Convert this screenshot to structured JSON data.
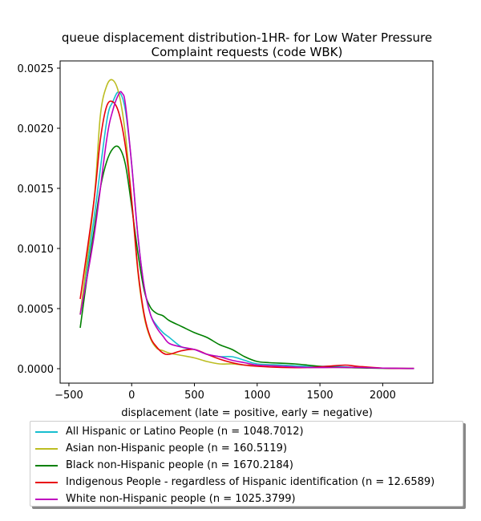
{
  "chart_data": {
    "type": "line",
    "title": "queue displacement distribution-1HR-  for Low Water Pressure\nComplaint  requests (code WBK)",
    "xlabel": "displacement (late = positive, early = negative)",
    "ylabel": "",
    "xlim": [
      -570,
      2400
    ],
    "ylim": [
      -0.00012,
      0.00256
    ],
    "xticks": [
      -500,
      0,
      500,
      1000,
      1500,
      2000
    ],
    "xtick_labels": [
      "−500",
      "0",
      "500",
      "1000",
      "1500",
      "2000"
    ],
    "yticks": [
      0.0,
      0.0005,
      0.001,
      0.0015,
      0.002,
      0.0025
    ],
    "ytick_labels": [
      "0.0000",
      "0.0005",
      "0.0010",
      "0.0015",
      "0.0020",
      "0.0025"
    ],
    "grid": false,
    "legend_placement": "below",
    "series": [
      {
        "name": "All Hispanic or Latino People (n = 1048.7012)",
        "color": "#17becf",
        "x": [
          -410,
          -300,
          -200,
          -150,
          -100,
          -50,
          0,
          50,
          100,
          150,
          200,
          250,
          300,
          400,
          500,
          600,
          700,
          800,
          900,
          1000,
          1200,
          1400,
          1600,
          1800,
          2000,
          2250
        ],
        "y": [
          0.00045,
          0.00125,
          0.00205,
          0.00222,
          0.0023,
          0.00215,
          0.0017,
          0.0011,
          0.00068,
          0.00045,
          0.00036,
          0.0003,
          0.00026,
          0.00018,
          0.00016,
          0.00012,
          0.0001,
          0.0001,
          7e-05,
          4e-05,
          3e-05,
          2e-05,
          2e-05,
          1e-05,
          5e-06,
          2e-06
        ]
      },
      {
        "name": "Asian non-Hispanic people (n = 160.5119)",
        "color": "#bcbd22",
        "x": [
          -410,
          -300,
          -250,
          -200,
          -150,
          -100,
          -50,
          0,
          50,
          100,
          150,
          200,
          250,
          300,
          400,
          500,
          600,
          700,
          800,
          900,
          1000,
          1200,
          1400,
          1600,
          1800,
          2000,
          2250
        ],
        "y": [
          0.00045,
          0.0014,
          0.0021,
          0.00235,
          0.0024,
          0.00228,
          0.00195,
          0.0014,
          0.0008,
          0.00043,
          0.00025,
          0.00017,
          0.00015,
          0.00013,
          0.00011,
          9e-05,
          6e-05,
          4e-05,
          4e-05,
          3e-05,
          3e-05,
          2e-05,
          1e-05,
          1e-05,
          1e-05,
          5e-06,
          2e-06
        ]
      },
      {
        "name": "Black non-Hispanic people (n = 1670.2184)",
        "color": "#008000",
        "x": [
          -410,
          -350,
          -300,
          -250,
          -200,
          -150,
          -100,
          -50,
          0,
          50,
          100,
          150,
          200,
          250,
          300,
          400,
          500,
          600,
          700,
          800,
          900,
          1000,
          1100,
          1300,
          1500,
          1700,
          1900,
          2100,
          2250
        ],
        "y": [
          0.00034,
          0.0008,
          0.00115,
          0.0015,
          0.00172,
          0.00183,
          0.00184,
          0.0017,
          0.00135,
          0.00096,
          0.00065,
          0.00051,
          0.00046,
          0.00044,
          0.0004,
          0.00035,
          0.0003,
          0.00026,
          0.0002,
          0.00016,
          0.0001,
          6e-05,
          5e-05,
          4e-05,
          2e-05,
          1e-05,
          5e-06,
          2e-06,
          1e-06
        ]
      },
      {
        "name": "Indigenous People - regardless of Hispanic identification (n = 12.6589)",
        "color": "#e8000b",
        "x": [
          -410,
          -300,
          -250,
          -200,
          -150,
          -100,
          -50,
          0,
          50,
          100,
          150,
          200,
          250,
          300,
          400,
          500,
          600,
          700,
          800,
          900,
          1000,
          1200,
          1400,
          1550,
          1700,
          1800,
          2000,
          2250
        ],
        "y": [
          0.00058,
          0.0014,
          0.0019,
          0.00218,
          0.00222,
          0.00212,
          0.00185,
          0.0014,
          0.00082,
          0.00045,
          0.00026,
          0.00018,
          0.00013,
          0.00012,
          0.00015,
          0.00016,
          0.00012,
          8e-05,
          5e-05,
          3e-05,
          2e-05,
          1e-05,
          1e-05,
          2e-05,
          3e-05,
          2e-05,
          5e-06,
          2e-06
        ]
      },
      {
        "name": "White non-Hispanic people (n = 1025.3799)",
        "color": "#bf00bf",
        "x": [
          -410,
          -300,
          -200,
          -150,
          -100,
          -75,
          -50,
          0,
          50,
          100,
          150,
          200,
          250,
          300,
          400,
          500,
          600,
          700,
          800,
          900,
          1000,
          1200,
          1400,
          1600,
          1800,
          2000,
          2250
        ],
        "y": [
          0.00045,
          0.0011,
          0.0019,
          0.00215,
          0.00229,
          0.00229,
          0.0022,
          0.0017,
          0.0011,
          0.00068,
          0.00045,
          0.00034,
          0.00027,
          0.00021,
          0.00018,
          0.00016,
          0.00012,
          0.0001,
          7e-05,
          5e-05,
          3e-05,
          2e-05,
          1e-05,
          1e-05,
          1e-05,
          5e-06,
          2e-06
        ]
      }
    ]
  }
}
